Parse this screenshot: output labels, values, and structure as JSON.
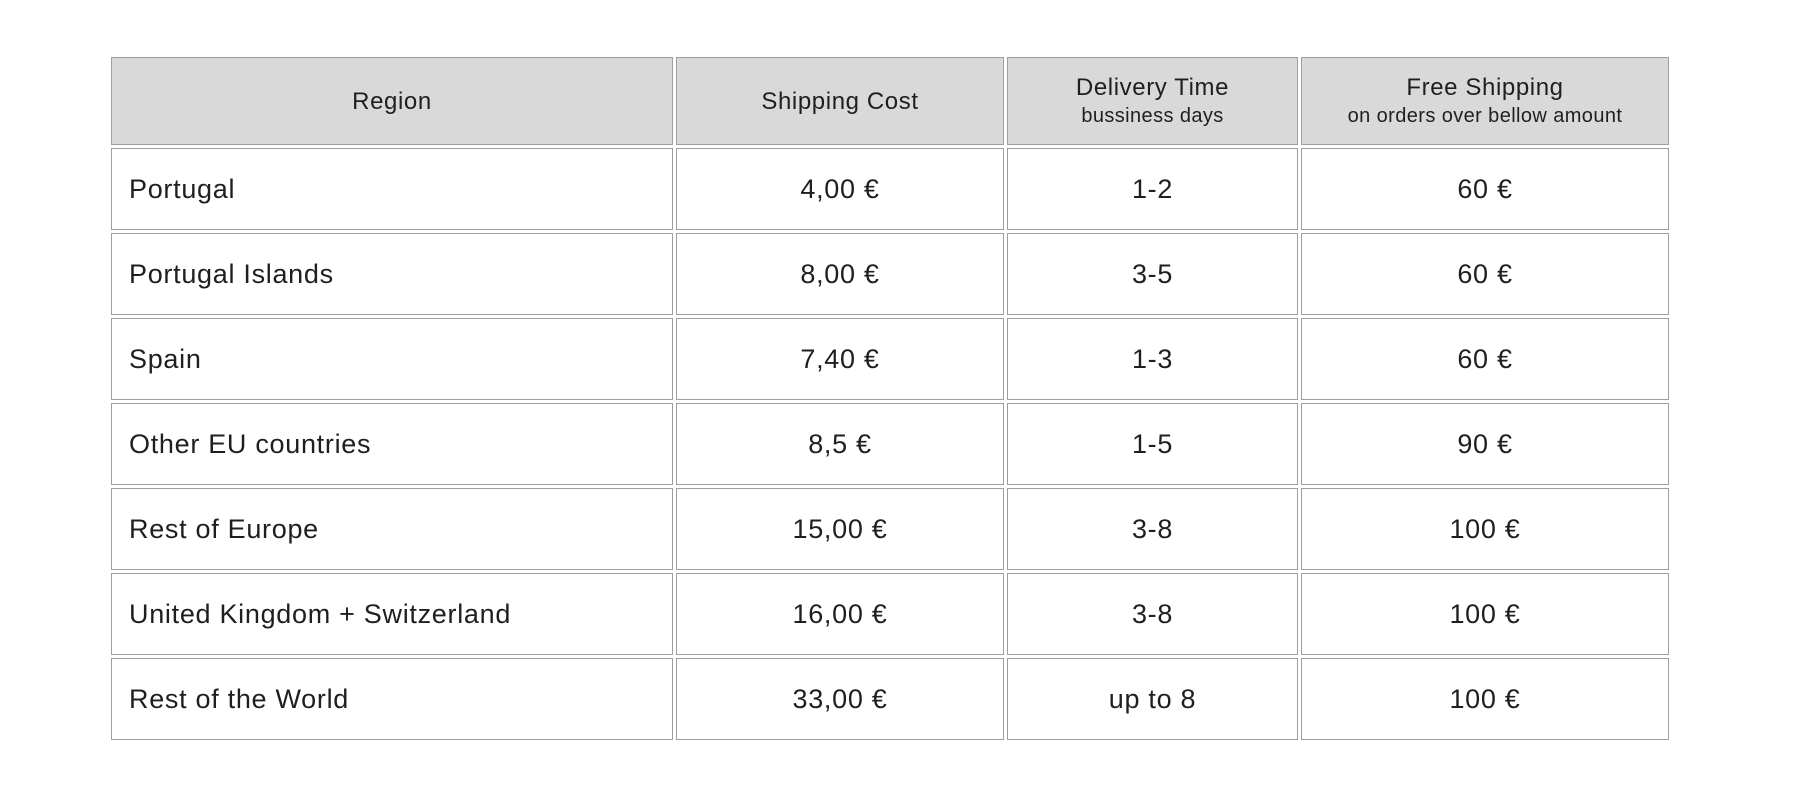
{
  "table": {
    "columns": [
      {
        "label": "Region",
        "sublabel": ""
      },
      {
        "label": "Shipping Cost",
        "sublabel": ""
      },
      {
        "label": "Delivery Time",
        "sublabel": "bussiness days"
      },
      {
        "label": "Free Shipping",
        "sublabel": "on orders over bellow amount"
      }
    ],
    "rows": [
      {
        "region": "Portugal",
        "cost": "4,00 €",
        "delivery": "1-2",
        "free_over": "60 €"
      },
      {
        "region": "Portugal Islands",
        "cost": "8,00 €",
        "delivery": "3-5",
        "free_over": "60 €"
      },
      {
        "region": "Spain",
        "cost": "7,40 €",
        "delivery": "1-3",
        "free_over": "60 €"
      },
      {
        "region": "Other EU countries",
        "cost": "8,5 €",
        "delivery": "1-5",
        "free_over": "90 €"
      },
      {
        "region": "Rest of Europe",
        "cost": "15,00 €",
        "delivery": "3-8",
        "free_over": "100 €"
      },
      {
        "region": "United Kingdom + Switzerland",
        "cost": "16,00 €",
        "delivery": "3-8",
        "free_over": "100 €"
      },
      {
        "region": "Rest of the World",
        "cost": "33,00 €",
        "delivery": "up to 8",
        "free_over": "100 €"
      }
    ],
    "colors": {
      "header_bg": "#d9d9d9",
      "border": "#9e9e9e",
      "text": "#1f1f1f",
      "page_bg": "#ffffff"
    }
  }
}
